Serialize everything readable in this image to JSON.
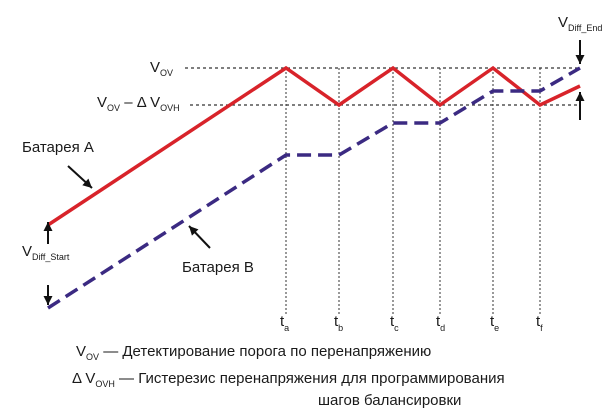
{
  "colors": {
    "battery_a": "#d8232a",
    "battery_b": "#3b2a82",
    "guide": "#333333",
    "text": "#1a1a1a"
  },
  "labels": {
    "vov": {
      "main": "V",
      "sub": "OV"
    },
    "vov_minus": {
      "pre": "V",
      "pre_sub": "OV",
      "mid": " – Δ V",
      "sub": "OVH"
    },
    "diff_start": {
      "main": "V",
      "sub": "Diff_Start"
    },
    "diff_end": {
      "main": "V",
      "sub": "Diff_End"
    },
    "battery_a": "Батарея A",
    "battery_b": "Батарея B"
  },
  "time_marks": [
    {
      "main": "t",
      "sub": "a"
    },
    {
      "main": "t",
      "sub": "b"
    },
    {
      "main": "t",
      "sub": "c"
    },
    {
      "main": "t",
      "sub": "d"
    },
    {
      "main": "t",
      "sub": "e"
    },
    {
      "main": "t",
      "sub": "f"
    }
  ],
  "legend": {
    "vov": {
      "symbol": "V",
      "sub": "OV",
      "text": " — Детектирование порога по перенапряжению"
    },
    "dvovh": {
      "symbol": "Δ V",
      "sub": "OVH",
      "text": " — Гистерезис перенапряжения для программирования",
      "text2": "шагов балансировки"
    }
  }
}
